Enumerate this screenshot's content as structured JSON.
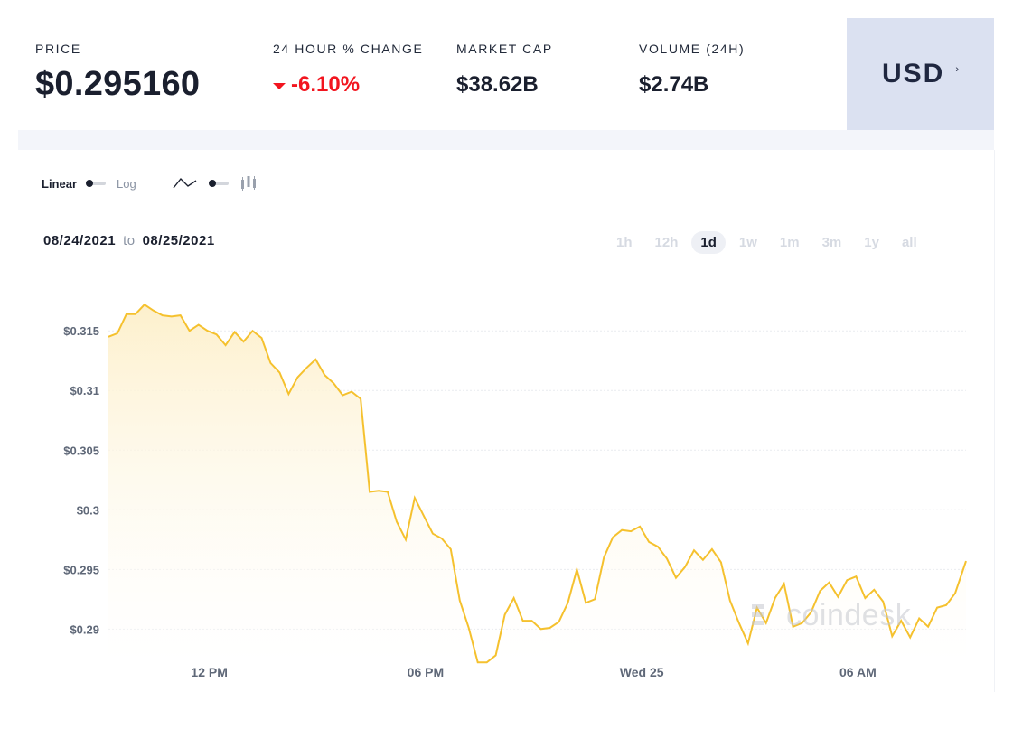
{
  "stats": {
    "price": {
      "label": "PRICE",
      "value": "$0.295160"
    },
    "change": {
      "label": "24 HOUR % CHANGE",
      "value": "-6.10%"
    },
    "market_cap": {
      "label": "MARKET CAP",
      "value": "$38.62B"
    },
    "volume": {
      "label": "VOLUME (24H)",
      "value": "$2.74B"
    }
  },
  "currency": {
    "label": "USD"
  },
  "controls": {
    "scale_linear": "Linear",
    "scale_log": "Log",
    "line_icon": "line-chart-icon",
    "bars_icon": "candlestick-icon"
  },
  "daterange": {
    "from": "08/24/2021",
    "to_word": "to",
    "to": "08/25/2021"
  },
  "ranges": [
    {
      "label": "1h",
      "active": false
    },
    {
      "label": "12h",
      "active": false
    },
    {
      "label": "1d",
      "active": true
    },
    {
      "label": "1w",
      "active": false
    },
    {
      "label": "1m",
      "active": false
    },
    {
      "label": "3m",
      "active": false
    },
    {
      "label": "1y",
      "active": false
    },
    {
      "label": "all",
      "active": false
    }
  ],
  "watermark": "coindesk",
  "colors": {
    "line": "#f5c12e",
    "negative": "#f2151f",
    "currency_bg": "#dbe1f1",
    "fill_top": "#fdf0cc"
  },
  "chart_data": {
    "type": "area",
    "title": "",
    "xlabel": "",
    "ylabel": "",
    "ylim": [
      0.2873,
      0.3185
    ],
    "y_ticks": [
      {
        "value": 0.315,
        "label": "$0.315"
      },
      {
        "value": 0.31,
        "label": "$0.31"
      },
      {
        "value": 0.305,
        "label": "$0.305"
      },
      {
        "value": 0.3,
        "label": "$0.3"
      },
      {
        "value": 0.295,
        "label": "$0.295"
      },
      {
        "value": 0.29,
        "label": "$0.29"
      }
    ],
    "x_range": [
      0,
      23.8
    ],
    "x_ticks": [
      {
        "value": 2.8,
        "label": "12 PM"
      },
      {
        "value": 8.8,
        "label": "06 PM"
      },
      {
        "value": 14.8,
        "label": "Wed 25"
      },
      {
        "value": 20.8,
        "label": "06 AM"
      }
    ],
    "grid": true,
    "legend": "none",
    "series": [
      {
        "x": [
          0,
          0.25,
          0.5,
          0.75,
          1,
          1.25,
          1.5,
          1.75,
          2,
          2.25,
          2.5,
          2.75,
          3,
          3.25,
          3.5,
          3.75,
          4,
          4.25,
          4.5,
          4.75,
          5,
          5.25,
          5.5,
          5.75,
          6,
          6.25,
          6.5,
          6.75,
          7,
          7.25,
          7.5,
          7.75,
          8,
          8.25,
          8.5,
          8.75,
          9,
          9.25,
          9.5,
          9.75,
          10,
          10.25,
          10.5,
          10.75,
          11,
          11.25,
          11.5,
          11.75,
          12,
          12.25,
          12.5,
          12.75,
          13,
          13.25,
          13.5,
          13.75,
          14,
          14.25,
          14.5,
          14.75,
          15,
          15.25,
          15.5,
          15.75,
          16,
          16.25,
          16.5,
          16.75,
          17,
          17.25,
          17.5,
          17.75,
          18,
          18.25,
          18.5,
          18.75,
          19,
          19.25,
          19.5,
          19.75,
          20,
          20.25,
          20.5,
          20.75,
          21,
          21.25,
          21.5,
          21.75,
          22,
          22.25,
          22.5,
          22.75,
          23,
          23.25,
          23.5,
          23.8
        ],
        "values": [
          0.3145,
          0.3148,
          0.3164,
          0.3164,
          0.3172,
          0.3167,
          0.3163,
          0.3162,
          0.3163,
          0.315,
          0.3155,
          0.315,
          0.3147,
          0.3138,
          0.3149,
          0.3141,
          0.315,
          0.3144,
          0.3123,
          0.3115,
          0.3097,
          0.3111,
          0.3119,
          0.3126,
          0.3113,
          0.3106,
          0.3096,
          0.3099,
          0.3093,
          0.3015,
          0.3016,
          0.3015,
          0.299,
          0.2975,
          0.301,
          0.2995,
          0.298,
          0.2976,
          0.2967,
          0.2924,
          0.2901,
          0.2872,
          0.2872,
          0.2878,
          0.2912,
          0.2926,
          0.2907,
          0.2907,
          0.29,
          0.2901,
          0.2906,
          0.2922,
          0.295,
          0.2922,
          0.2925,
          0.296,
          0.2977,
          0.2983,
          0.2982,
          0.2986,
          0.2973,
          0.2969,
          0.2959,
          0.2943,
          0.2952,
          0.2966,
          0.2958,
          0.2967,
          0.2956,
          0.2924,
          0.2905,
          0.2888,
          0.2918,
          0.2905,
          0.2926,
          0.2938,
          0.2902,
          0.2905,
          0.2914,
          0.2932,
          0.2939,
          0.2927,
          0.2941,
          0.2944,
          0.2926,
          0.2933,
          0.2923,
          0.2894,
          0.2907,
          0.2893,
          0.2909,
          0.2902,
          0.2918,
          0.292,
          0.293,
          0.2957
        ]
      }
    ]
  }
}
